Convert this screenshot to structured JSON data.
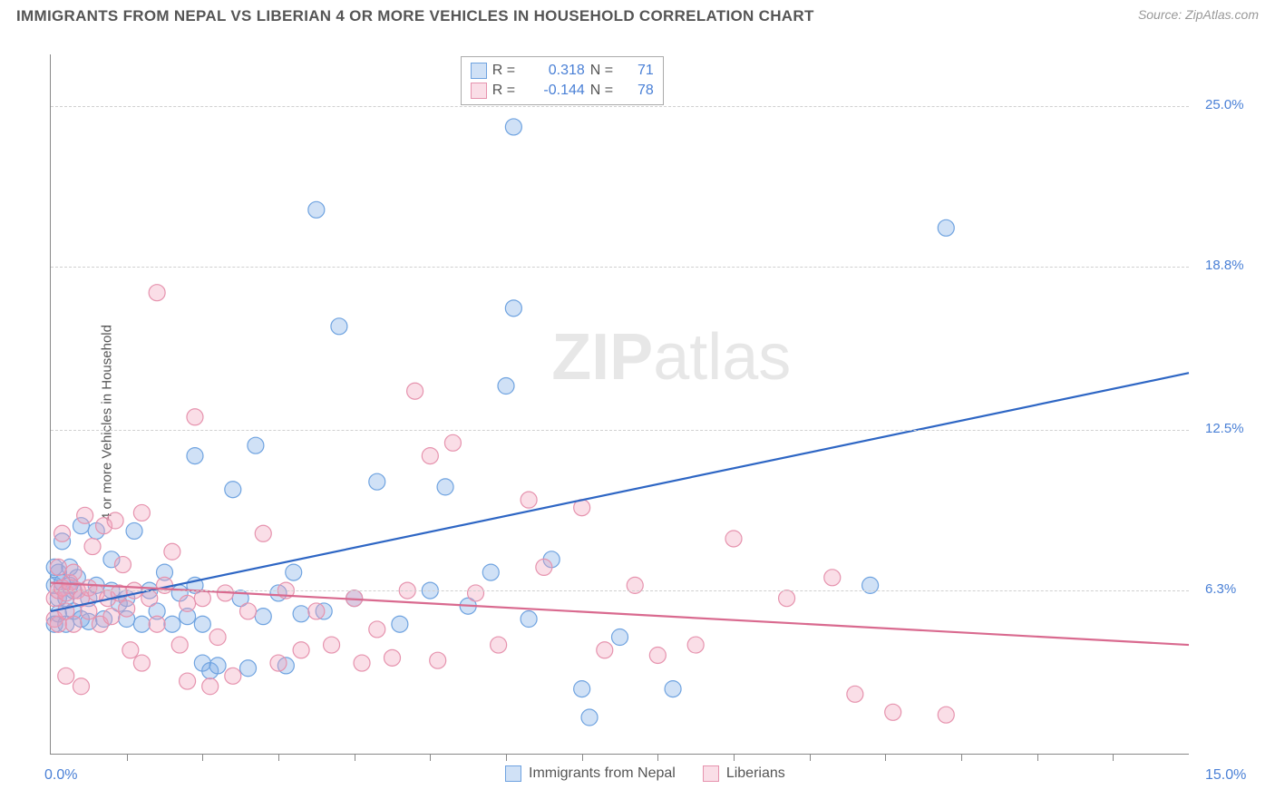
{
  "header": {
    "title": "IMMIGRANTS FROM NEPAL VS LIBERIAN 4 OR MORE VEHICLES IN HOUSEHOLD CORRELATION CHART",
    "source": "Source: ZipAtlas.com"
  },
  "axes": {
    "y_label": "4 or more Vehicles in Household",
    "x_min": 0.0,
    "x_max": 15.0,
    "x_min_label": "0.0%",
    "x_max_label": "15.0%",
    "y_min": 0.0,
    "y_max": 27.0,
    "y_ticks": [
      {
        "value": 6.3,
        "label": "6.3%"
      },
      {
        "value": 12.5,
        "label": "12.5%"
      },
      {
        "value": 18.8,
        "label": "18.8%"
      },
      {
        "value": 25.0,
        "label": "25.0%"
      }
    ],
    "x_tick_step": 1.0
  },
  "series": [
    {
      "key": "nepal",
      "label": "Immigrants from Nepal",
      "color_fill": "rgba(120,170,230,0.35)",
      "color_stroke": "#6fa3e0",
      "line_color": "#2e66c4",
      "R": "0.318",
      "N": "71",
      "trend": {
        "x1": 0.0,
        "y1": 5.5,
        "x2": 15.0,
        "y2": 14.7
      },
      "points": [
        [
          0.05,
          6.5
        ],
        [
          0.05,
          5.0
        ],
        [
          0.05,
          7.2
        ],
        [
          0.1,
          6.0
        ],
        [
          0.1,
          5.4
        ],
        [
          0.1,
          7.0
        ],
        [
          0.15,
          6.6
        ],
        [
          0.15,
          8.2
        ],
        [
          0.2,
          6.0
        ],
        [
          0.2,
          5.0
        ],
        [
          0.25,
          6.5
        ],
        [
          0.25,
          7.2
        ],
        [
          0.3,
          6.3
        ],
        [
          0.3,
          5.5
        ],
        [
          0.35,
          6.8
        ],
        [
          0.4,
          5.2
        ],
        [
          0.4,
          8.8
        ],
        [
          0.5,
          6.0
        ],
        [
          0.5,
          5.1
        ],
        [
          0.6,
          6.5
        ],
        [
          0.6,
          8.6
        ],
        [
          0.7,
          5.2
        ],
        [
          0.8,
          6.3
        ],
        [
          0.8,
          7.5
        ],
        [
          0.9,
          5.8
        ],
        [
          1.0,
          5.2
        ],
        [
          1.0,
          6.0
        ],
        [
          1.1,
          8.6
        ],
        [
          1.2,
          5.0
        ],
        [
          1.3,
          6.3
        ],
        [
          1.4,
          5.5
        ],
        [
          1.5,
          7.0
        ],
        [
          1.6,
          5.0
        ],
        [
          1.7,
          6.2
        ],
        [
          1.8,
          5.3
        ],
        [
          1.9,
          11.5
        ],
        [
          1.9,
          6.5
        ],
        [
          2.0,
          5.0
        ],
        [
          2.0,
          3.5
        ],
        [
          2.1,
          3.2
        ],
        [
          2.2,
          3.4
        ],
        [
          2.4,
          10.2
        ],
        [
          2.5,
          6.0
        ],
        [
          2.6,
          3.3
        ],
        [
          2.7,
          11.9
        ],
        [
          2.8,
          5.3
        ],
        [
          3.0,
          6.2
        ],
        [
          3.1,
          3.4
        ],
        [
          3.2,
          7.0
        ],
        [
          3.3,
          5.4
        ],
        [
          3.5,
          21.0
        ],
        [
          3.6,
          5.5
        ],
        [
          3.8,
          16.5
        ],
        [
          4.0,
          6.0
        ],
        [
          4.3,
          10.5
        ],
        [
          4.6,
          5.0
        ],
        [
          5.0,
          6.3
        ],
        [
          5.2,
          10.3
        ],
        [
          5.5,
          5.7
        ],
        [
          5.8,
          7.0
        ],
        [
          6.0,
          14.2
        ],
        [
          6.1,
          17.2
        ],
        [
          6.1,
          24.2
        ],
        [
          6.3,
          5.2
        ],
        [
          6.6,
          7.5
        ],
        [
          7.0,
          2.5
        ],
        [
          7.1,
          1.4
        ],
        [
          7.5,
          4.5
        ],
        [
          8.2,
          2.5
        ],
        [
          11.8,
          20.3
        ],
        [
          10.8,
          6.5
        ]
      ]
    },
    {
      "key": "liberians",
      "label": "Liberians",
      "color_fill": "rgba(240,160,185,0.35)",
      "color_stroke": "#e693ae",
      "line_color": "#d96a8f",
      "R": "-0.144",
      "N": "78",
      "trend": {
        "x1": 0.0,
        "y1": 6.6,
        "x2": 15.0,
        "y2": 4.2
      },
      "points": [
        [
          0.05,
          6.0
        ],
        [
          0.05,
          5.2
        ],
        [
          0.1,
          6.3
        ],
        [
          0.1,
          7.2
        ],
        [
          0.1,
          5.0
        ],
        [
          0.15,
          6.4
        ],
        [
          0.15,
          8.5
        ],
        [
          0.2,
          6.2
        ],
        [
          0.2,
          5.5
        ],
        [
          0.2,
          3.0
        ],
        [
          0.25,
          6.6
        ],
        [
          0.3,
          5.0
        ],
        [
          0.3,
          7.0
        ],
        [
          0.35,
          6.3
        ],
        [
          0.4,
          2.6
        ],
        [
          0.4,
          6.0
        ],
        [
          0.45,
          9.2
        ],
        [
          0.5,
          6.4
        ],
        [
          0.5,
          5.5
        ],
        [
          0.55,
          8.0
        ],
        [
          0.6,
          6.2
        ],
        [
          0.65,
          5.0
        ],
        [
          0.7,
          8.8
        ],
        [
          0.75,
          6.0
        ],
        [
          0.8,
          5.3
        ],
        [
          0.85,
          9.0
        ],
        [
          0.9,
          6.2
        ],
        [
          0.95,
          7.3
        ],
        [
          1.0,
          5.6
        ],
        [
          1.05,
          4.0
        ],
        [
          1.1,
          6.3
        ],
        [
          1.2,
          9.3
        ],
        [
          1.2,
          3.5
        ],
        [
          1.3,
          6.0
        ],
        [
          1.4,
          5.0
        ],
        [
          1.4,
          17.8
        ],
        [
          1.5,
          6.5
        ],
        [
          1.6,
          7.8
        ],
        [
          1.7,
          4.2
        ],
        [
          1.8,
          5.8
        ],
        [
          1.8,
          2.8
        ],
        [
          1.9,
          13.0
        ],
        [
          2.0,
          6.0
        ],
        [
          2.1,
          2.6
        ],
        [
          2.2,
          4.5
        ],
        [
          2.3,
          6.2
        ],
        [
          2.4,
          3.0
        ],
        [
          2.6,
          5.5
        ],
        [
          2.8,
          8.5
        ],
        [
          3.0,
          3.5
        ],
        [
          3.1,
          6.3
        ],
        [
          3.3,
          4.0
        ],
        [
          3.5,
          5.5
        ],
        [
          3.7,
          4.2
        ],
        [
          4.0,
          6.0
        ],
        [
          4.1,
          3.5
        ],
        [
          4.3,
          4.8
        ],
        [
          4.5,
          3.7
        ],
        [
          4.7,
          6.3
        ],
        [
          4.8,
          14.0
        ],
        [
          5.0,
          11.5
        ],
        [
          5.1,
          3.6
        ],
        [
          5.3,
          12.0
        ],
        [
          5.6,
          6.2
        ],
        [
          5.9,
          4.2
        ],
        [
          6.3,
          9.8
        ],
        [
          6.5,
          7.2
        ],
        [
          7.0,
          9.5
        ],
        [
          7.3,
          4.0
        ],
        [
          7.7,
          6.5
        ],
        [
          8.0,
          3.8
        ],
        [
          8.5,
          4.2
        ],
        [
          9.0,
          8.3
        ],
        [
          9.7,
          6.0
        ],
        [
          10.3,
          6.8
        ],
        [
          10.6,
          2.3
        ],
        [
          11.1,
          1.6
        ],
        [
          11.8,
          1.5
        ]
      ]
    }
  ],
  "legend_top": {
    "r_label": "R  =",
    "n_label": "N  ="
  },
  "legend_bottom": {
    "items": [
      "Immigrants from Nepal",
      "Liberians"
    ]
  },
  "watermark": {
    "zip": "ZIP",
    "atlas": "atlas"
  },
  "style": {
    "marker_radius": 9,
    "marker_stroke_width": 1.2,
    "trend_line_width": 2.2,
    "grid_color": "#d0d0d0",
    "axis_color": "#888888",
    "tick_label_color": "#4a80d6"
  }
}
